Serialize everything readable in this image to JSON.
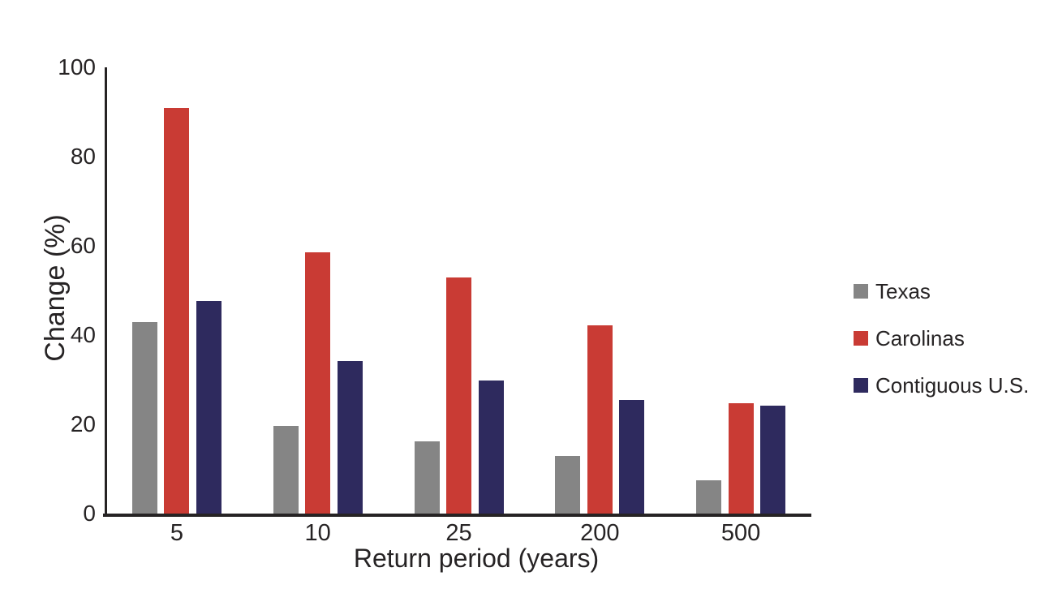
{
  "figure": {
    "background": "#ffffff",
    "axis_color": "#262324",
    "text_color": "#262324"
  },
  "chart_data": {
    "type": "bar",
    "title": "",
    "xlabel": "Return period (years)",
    "ylabel": "Change (%)",
    "categories": [
      "5",
      "10",
      "25",
      "200",
      "500"
    ],
    "series": [
      {
        "name": "Texas",
        "color": "#858585",
        "values": [
          43.0,
          19.7,
          16.2,
          13.0,
          7.5
        ]
      },
      {
        "name": "Carolinas",
        "color": "#c93b34",
        "values": [
          91.0,
          58.5,
          53.0,
          42.2,
          24.7
        ]
      },
      {
        "name": "Contiguous U.S.",
        "color": "#2e2a5e",
        "values": [
          47.6,
          34.2,
          29.8,
          25.4,
          24.2
        ]
      }
    ],
    "ylim": [
      0,
      100
    ],
    "yticks": [
      0,
      20,
      40,
      60,
      80,
      100
    ],
    "grid": false,
    "legend_position": "right-middle"
  }
}
